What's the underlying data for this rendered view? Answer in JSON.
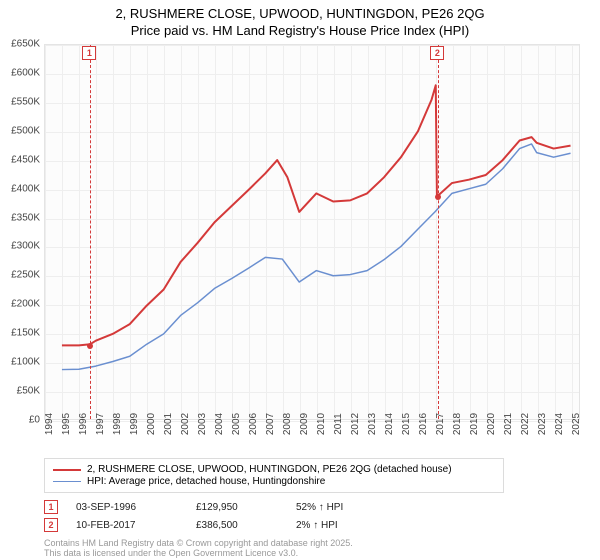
{
  "title_line1": "2, RUSHMERE CLOSE, UPWOOD, HUNTINGDON, PE26 2QG",
  "title_line2": "Price paid vs. HM Land Registry's House Price Index (HPI)",
  "chart": {
    "type": "line",
    "background_color": "#fcfcfc",
    "grid_color": "#eeeeee",
    "border_color": "#e4e4e4",
    "x_range": [
      1994,
      2025.5
    ],
    "y_range": [
      0,
      650000
    ],
    "x_ticks": [
      1994,
      1995,
      1996,
      1997,
      1998,
      1999,
      2000,
      2001,
      2002,
      2003,
      2004,
      2005,
      2006,
      2007,
      2008,
      2009,
      2010,
      2011,
      2012,
      2013,
      2014,
      2015,
      2016,
      2017,
      2018,
      2019,
      2020,
      2021,
      2022,
      2023,
      2024,
      2025
    ],
    "y_ticks": [
      0,
      50000,
      100000,
      150000,
      200000,
      250000,
      300000,
      350000,
      400000,
      450000,
      500000,
      550000,
      600000,
      650000
    ],
    "y_tick_labels": [
      "£0",
      "£50K",
      "£100K",
      "£150K",
      "£200K",
      "£250K",
      "£300K",
      "£350K",
      "£400K",
      "£450K",
      "£500K",
      "£550K",
      "£600K",
      "£650K"
    ],
    "series": [
      {
        "name": "2, RUSHMERE CLOSE, UPWOOD, HUNTINGDON, PE26 2QG (detached house)",
        "color": "#d43939",
        "width": 2,
        "data": [
          [
            1995,
            128000
          ],
          [
            1996,
            128000
          ],
          [
            1996.67,
            129950
          ],
          [
            1997,
            136000
          ],
          [
            1998,
            148000
          ],
          [
            1999,
            165000
          ],
          [
            2000,
            197000
          ],
          [
            2001,
            225000
          ],
          [
            2002,
            273000
          ],
          [
            2003,
            306000
          ],
          [
            2004,
            342000
          ],
          [
            2005,
            370000
          ],
          [
            2006,
            398000
          ],
          [
            2007,
            427000
          ],
          [
            2007.7,
            450000
          ],
          [
            2008.3,
            420000
          ],
          [
            2009,
            360000
          ],
          [
            2010,
            392000
          ],
          [
            2011,
            378000
          ],
          [
            2012,
            380000
          ],
          [
            2013,
            392000
          ],
          [
            2014,
            420000
          ],
          [
            2015,
            455000
          ],
          [
            2016,
            500000
          ],
          [
            2016.8,
            555000
          ],
          [
            2017.05,
            580000
          ],
          [
            2017.12,
            386500
          ],
          [
            2018,
            410000
          ],
          [
            2019,
            416000
          ],
          [
            2020,
            424000
          ],
          [
            2021,
            450000
          ],
          [
            2022,
            484000
          ],
          [
            2022.7,
            490000
          ],
          [
            2023,
            480000
          ],
          [
            2024,
            470000
          ],
          [
            2025,
            475000
          ]
        ]
      },
      {
        "name": "HPI: Average price, detached house, Huntingdonshire",
        "color": "#6a8fd0",
        "width": 1.5,
        "data": [
          [
            1995,
            86000
          ],
          [
            1996,
            86500
          ],
          [
            1997,
            92000
          ],
          [
            1998,
            100000
          ],
          [
            1999,
            109000
          ],
          [
            2000,
            130000
          ],
          [
            2001,
            148000
          ],
          [
            2002,
            180000
          ],
          [
            2003,
            202000
          ],
          [
            2004,
            227000
          ],
          [
            2005,
            244000
          ],
          [
            2006,
            262000
          ],
          [
            2007,
            281000
          ],
          [
            2008,
            278000
          ],
          [
            2009,
            238000
          ],
          [
            2010,
            258000
          ],
          [
            2011,
            249000
          ],
          [
            2012,
            251000
          ],
          [
            2013,
            258000
          ],
          [
            2014,
            277000
          ],
          [
            2015,
            300000
          ],
          [
            2016,
            330000
          ],
          [
            2017,
            360000
          ],
          [
            2018,
            392000
          ],
          [
            2019,
            400000
          ],
          [
            2020,
            408000
          ],
          [
            2021,
            435000
          ],
          [
            2022,
            470000
          ],
          [
            2022.7,
            478000
          ],
          [
            2023,
            463000
          ],
          [
            2024,
            455000
          ],
          [
            2025,
            462000
          ]
        ]
      }
    ],
    "markers": [
      {
        "label": "1",
        "x": 1996.67,
        "date": "03-SEP-1996",
        "price": "£129,950",
        "pct": "52% ↑ HPI",
        "series0_y": 129950
      },
      {
        "label": "2",
        "x": 2017.12,
        "date": "10-FEB-2017",
        "price": "£386,500",
        "pct": "2% ↑ HPI",
        "series0_y": 386500
      }
    ]
  },
  "legend_title": null,
  "attribution_line1": "Contains HM Land Registry data © Crown copyright and database right 2025.",
  "attribution_line2": "This data is licensed under the Open Government Licence v3.0."
}
